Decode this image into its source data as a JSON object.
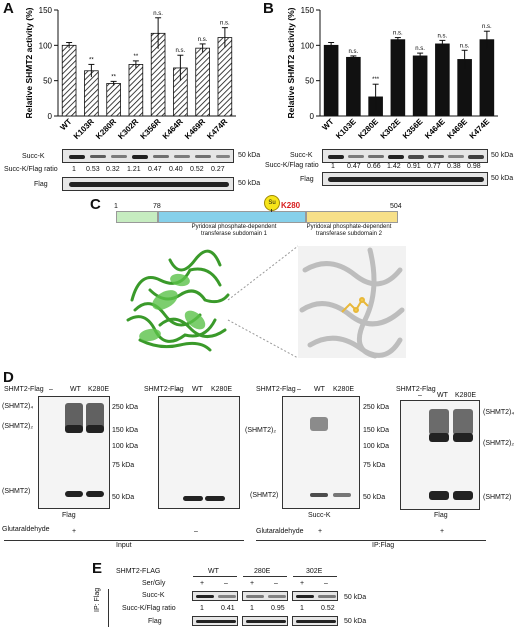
{
  "panels": {
    "A": "A",
    "B": "B",
    "C": "C",
    "D": "D",
    "E": "E"
  },
  "chart_data": [
    {
      "type": "bar",
      "title": "",
      "ylabel": "Relative SHMT2 activity (%)",
      "ylim": [
        0,
        150
      ],
      "yticks": [
        0,
        50,
        100,
        150
      ],
      "categories": [
        "WT",
        "K103R",
        "K280R",
        "K302R",
        "K356R",
        "K464R",
        "K469R",
        "K474R"
      ],
      "values": [
        100,
        64,
        46,
        73,
        117,
        68,
        96,
        111
      ],
      "errors": [
        4,
        9,
        3,
        5,
        22,
        18,
        6,
        14
      ],
      "significance": [
        "",
        "**",
        "**",
        "**",
        "n.s.",
        "n.s.",
        "n.s.",
        "n.s."
      ],
      "fill": "hatched"
    },
    {
      "type": "bar",
      "title": "",
      "ylabel": "Relative SHMT2 activity (%)",
      "ylim": [
        0,
        150
      ],
      "yticks": [
        0,
        50,
        100,
        150
      ],
      "categories": [
        "WT",
        "K103E",
        "K280E",
        "K302E",
        "K356E",
        "K464E",
        "K469E",
        "K474E"
      ],
      "values": [
        100,
        83,
        27,
        108,
        85,
        102,
        80,
        108
      ],
      "errors": [
        4,
        2,
        18,
        3,
        4,
        5,
        13,
        12
      ],
      "significance": [
        "",
        "n.s.",
        "***",
        "n.s.",
        "n.s.",
        "n.s.",
        "n.s.",
        "n.s."
      ],
      "fill": "#111111"
    }
  ],
  "blotA": {
    "succk": "Succ-K",
    "ratio_label": "Succ-K/Flag ratio",
    "flag": "Flag",
    "mw50a": "50 kDa",
    "mw50b": "50 kDa",
    "ratios": [
      "1",
      "0.53",
      "0.32",
      "1.21",
      "0.47",
      "0.40",
      "0.52",
      "0.27"
    ]
  },
  "blotB": {
    "succk": "Succ-K",
    "ratio_label": "Succ-K/Flag ratio",
    "flag": "Flag",
    "mw50a": "50 kDa",
    "mw50b": "50 kDa",
    "ratios": [
      "1",
      "0.47",
      "0.66",
      "1.42",
      "0.91",
      "0.77",
      "0.38",
      "0.98"
    ]
  },
  "domainC": {
    "start": "1",
    "mid": "78",
    "end": "504",
    "site": "K280",
    "su": "Su",
    "sub1": [
      "Pyridoxal phosphate-dependent",
      "transferase subdomain 1"
    ],
    "sub2": [
      "Pyridoxal phosphate-dependent",
      "transferase subdomain 2"
    ],
    "colors": {
      "green": "#c6ecc0",
      "blue": "#86d0ea",
      "yellow": "#f7e089",
      "site": "#d81e1e"
    }
  },
  "panelD": {
    "shmt2flag": "SHMT2-Flag",
    "dash": "–",
    "wt": "WT",
    "k280e": "K280E",
    "tetramer": "(SHMT2)₄",
    "dimer": "(SHMT2)₂",
    "monomer": "(SHMT2)",
    "mw": [
      "250 kDa",
      "150 kDa",
      "100 kDa",
      "75 kDa",
      "50 kDa"
    ],
    "flag": "Flag",
    "succk": "Succ-K",
    "glutaraldehyde": "Glutaraldehyde",
    "plus": "+",
    "minus": "–",
    "input": "Input",
    "ipflag": "IP:Flag"
  },
  "panelE": {
    "shmt2flag": "SHMT2-FLAG",
    "wt": "WT",
    "e280": "280E",
    "e302": "302E",
    "sergly": "Ser/Gly",
    "signs": [
      "+",
      "–",
      "+",
      "–",
      "+",
      "–"
    ],
    "succk": "Succ-K",
    "ratio_label": "Succ-K/Flag ratio",
    "flag": "Flag",
    "ip": "IP: Flag",
    "ratios": [
      "1",
      "0.41",
      "1",
      "0.95",
      "1",
      "0.52"
    ],
    "mw50a": "50 kDa",
    "mw50b": "50 kDa"
  }
}
